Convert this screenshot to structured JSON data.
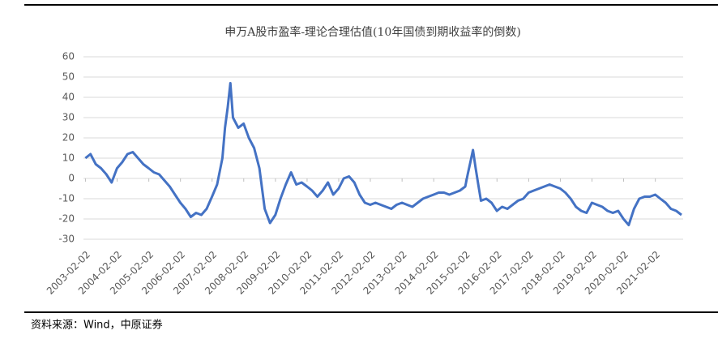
{
  "chart_data": {
    "type": "line",
    "title": "申万A股市盈率-理论合理估值(10年国债到期收益率的倒数)",
    "source": "资料来源：Wind，中原证券",
    "color": "#4472c4",
    "grid": true,
    "x": [
      "2003-02-01",
      "2003-04-01",
      "2003-06-01",
      "2003-08-01",
      "2003-10-01",
      "2003-12-01",
      "2004-02-01",
      "2004-04-01",
      "2004-06-01",
      "2004-08-01",
      "2004-10-01",
      "2004-12-01",
      "2005-02-01",
      "2005-04-01",
      "2005-06-01",
      "2005-08-01",
      "2005-10-01",
      "2005-12-01",
      "2006-02-01",
      "2006-04-01",
      "2006-06-01",
      "2006-08-01",
      "2006-10-01",
      "2006-12-01",
      "2007-02-01",
      "2007-04-01",
      "2007-06-01",
      "2007-07-01",
      "2007-08-01",
      "2007-09-01",
      "2007-10-01",
      "2007-12-01",
      "2008-02-01",
      "2008-04-01",
      "2008-06-01",
      "2008-08-01",
      "2008-10-01",
      "2008-12-01",
      "2009-02-01",
      "2009-04-01",
      "2009-06-01",
      "2009-08-01",
      "2009-10-01",
      "2009-12-01",
      "2010-02-01",
      "2010-04-01",
      "2010-06-01",
      "2010-08-01",
      "2010-10-01",
      "2010-12-01",
      "2011-02-01",
      "2011-04-01",
      "2011-06-01",
      "2011-08-01",
      "2011-10-01",
      "2011-12-01",
      "2012-02-01",
      "2012-04-01",
      "2012-06-01",
      "2012-08-01",
      "2012-10-01",
      "2012-12-01",
      "2013-02-01",
      "2013-04-01",
      "2013-06-01",
      "2013-08-01",
      "2013-10-01",
      "2013-12-01",
      "2014-02-01",
      "2014-04-01",
      "2014-06-01",
      "2014-08-01",
      "2014-10-01",
      "2014-12-01",
      "2015-02-01",
      "2015-03-01",
      "2015-04-01",
      "2015-05-01",
      "2015-06-01",
      "2015-07-01",
      "2015-08-01",
      "2015-10-01",
      "2015-12-01",
      "2016-02-01",
      "2016-04-01",
      "2016-06-01",
      "2016-08-01",
      "2016-10-01",
      "2016-12-01",
      "2017-02-01",
      "2017-04-01",
      "2017-06-01",
      "2017-08-01",
      "2017-10-01",
      "2017-12-01",
      "2018-02-01",
      "2018-04-01",
      "2018-06-01",
      "2018-08-01",
      "2018-10-01",
      "2018-12-01",
      "2019-02-01",
      "2019-04-01",
      "2019-06-01",
      "2019-08-01",
      "2019-10-01",
      "2019-12-01",
      "2020-02-01",
      "2020-04-01",
      "2020-06-01",
      "2020-08-01",
      "2020-10-01",
      "2020-12-01",
      "2021-02-01",
      "2021-04-01",
      "2021-06-01",
      "2021-08-01",
      "2021-10-01",
      "2021-12-01"
    ],
    "values": [
      10,
      12,
      7,
      5,
      2,
      -2,
      5,
      8,
      12,
      13,
      10,
      7,
      5,
      3,
      2,
      -1,
      -4,
      -8,
      -12,
      -15,
      -19,
      -17,
      -18,
      -15,
      -9,
      -3,
      10,
      25,
      35,
      47,
      30,
      25,
      27,
      20,
      15,
      5,
      -15,
      -22,
      -18,
      -10,
      -3,
      3,
      -3,
      -2,
      -4,
      -6,
      -9,
      -6,
      -2,
      -8,
      -5,
      0,
      1,
      -2,
      -8,
      -12,
      -13,
      -12,
      -13,
      -14,
      -15,
      -13,
      -12,
      -13,
      -14,
      -12,
      -10,
      -9,
      -8,
      -7,
      -7,
      -8,
      -7,
      -6,
      -4,
      2,
      8,
      14,
      5,
      -3,
      -11,
      -10,
      -12,
      -16,
      -14,
      -15,
      -13,
      -11,
      -10,
      -7,
      -6,
      -5,
      -4,
      -3,
      -4,
      -5,
      -7,
      -10,
      -14,
      -16,
      -17,
      -12,
      -13,
      -14,
      -16,
      -17,
      -16,
      -20,
      -23,
      -15,
      -10,
      -9,
      -9,
      -8,
      -10,
      -12,
      -15,
      -16,
      -18
    ],
    "xlim": [
      "2003-01-10",
      "2021-12-20"
    ],
    "xticks": [
      "2003-02-02",
      "2004-02-02",
      "2005-02-02",
      "2006-02-02",
      "2007-02-02",
      "2008-02-02",
      "2009-02-02",
      "2010-02-02",
      "2011-02-02",
      "2012-02-02",
      "2013-02-02",
      "2014-02-02",
      "2015-02-02",
      "2016-02-02",
      "2017-02-02",
      "2018-02-02",
      "2019-02-02",
      "2020-02-02",
      "2021-02-02"
    ],
    "ylim": [
      -30,
      60
    ],
    "yticks": [
      -30,
      -20,
      -10,
      0,
      10,
      20,
      30,
      40,
      50,
      60
    ]
  }
}
